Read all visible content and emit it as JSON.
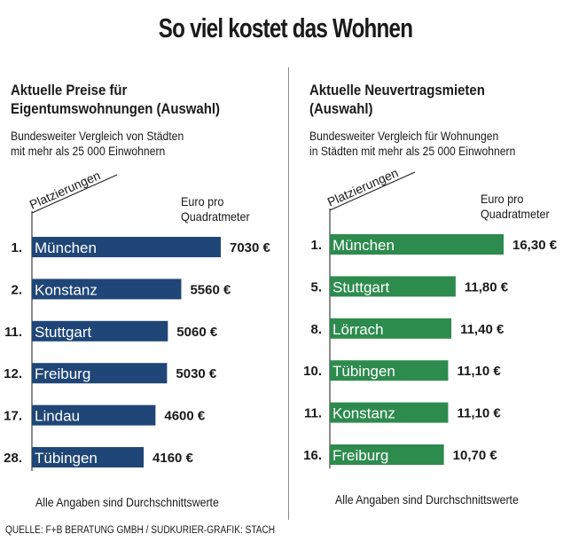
{
  "title": "So viel kostet das Wohnen",
  "source": "QUELLE: F+B BERATUNG GMBH / SÜDKURIER-GRAFIK: STACH",
  "colors": {
    "left_bar": "#1f4677",
    "right_bar": "#2e8b4e"
  },
  "left": {
    "heading": "Aktuelle Preise für\nEigentumswohnungen (Auswahl)",
    "subheading": "Bundesweiter Vergleich von Städten\nmit mehr als 25 000 Einwohnern",
    "unit": "Euro pro\nQuadratmeter",
    "footnote": "Alle Angaben sind Durchschnittswerte"
  },
  "right": {
    "heading": "Aktuelle Neuvertragsmieten\n(Auswahl)",
    "subheading": "Bundesweiter Vergleich für Wohnungen\nin Städten mit mehr als 25 000 Einwohnern",
    "unit": "Euro pro\nQuadratmeter",
    "footnote": "Alle Angaben sind Durchschnittswerte"
  },
  "chart_data": [
    {
      "type": "bar",
      "orientation": "horizontal",
      "axis_label": "Platzierungen",
      "ranks": [
        "1.",
        "2.",
        "11.",
        "12.",
        "17.",
        "28."
      ],
      "categories": [
        "München",
        "Konstanz",
        "Stuttgart",
        "Freiburg",
        "Lindau",
        "Tübingen"
      ],
      "values": [
        7030,
        5560,
        5060,
        5030,
        4600,
        4160
      ],
      "value_labels": [
        "7030 €",
        "5560 €",
        "5060 €",
        "5030 €",
        "4600 €",
        "4160 €"
      ]
    },
    {
      "type": "bar",
      "orientation": "horizontal",
      "axis_label": "Platzierungen",
      "ranks": [
        "1.",
        "5.",
        "8.",
        "10.",
        "11.",
        "16."
      ],
      "categories": [
        "München",
        "Stuttgart",
        "Lörrach",
        "Tübingen",
        "Konstanz",
        "Freiburg"
      ],
      "values": [
        16.3,
        11.8,
        11.4,
        11.1,
        11.1,
        10.7
      ],
      "value_labels": [
        "16,30 €",
        "11,80 €",
        "11,40 €",
        "11,10 €",
        "11,10 €",
        "10,70 €"
      ]
    }
  ]
}
